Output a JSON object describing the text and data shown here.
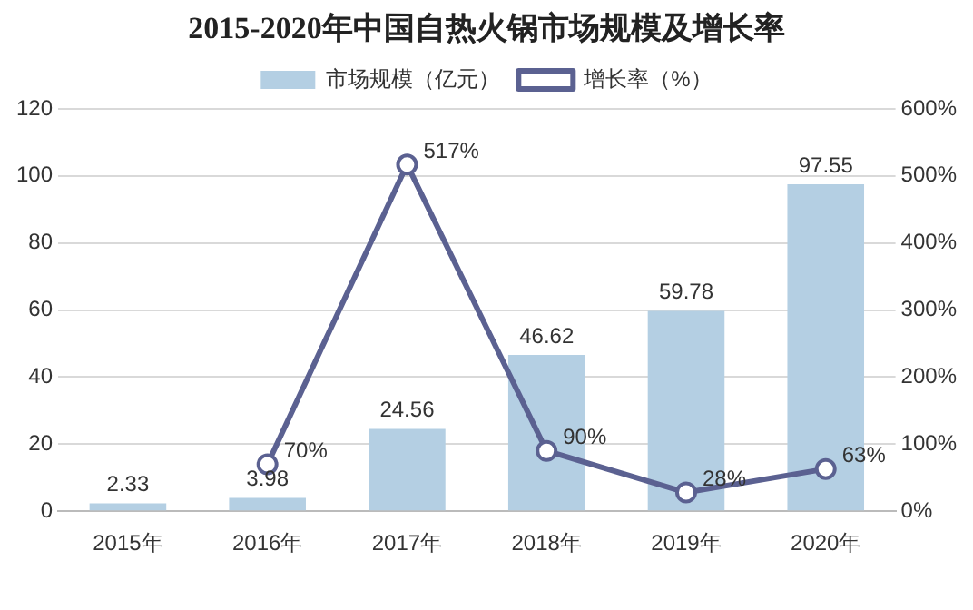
{
  "chart_data": {
    "type": "bar",
    "title": "2015-2020年中国自热火锅市场规模及增长率",
    "categories": [
      "2015年",
      "2016年",
      "2017年",
      "2018年",
      "2019年",
      "2020年"
    ],
    "series": [
      {
        "name": "市场规模（亿元）",
        "color": "#b4cfe3",
        "values": [
          2.33,
          3.98,
          24.56,
          46.62,
          59.78,
          97.55
        ],
        "value_labels": [
          "2.33",
          "3.98",
          "24.56",
          "46.62",
          "59.78",
          "97.55"
        ]
      },
      {
        "name": "增长率（%）",
        "type": "line",
        "axis": "y2",
        "color": "#5b6191",
        "values": [
          null,
          70,
          517,
          90,
          28,
          63
        ],
        "value_labels": [
          null,
          "70%",
          "517%",
          "90%",
          "28%",
          "63%"
        ]
      }
    ],
    "ylim": [
      0,
      120
    ],
    "yticks": [
      0,
      20,
      40,
      60,
      80,
      100,
      120
    ],
    "y2lim": [
      0,
      600
    ],
    "y2ticks": [
      {
        "value": 0,
        "label": "0%"
      },
      {
        "value": 100,
        "label": "100%"
      },
      {
        "value": 200,
        "label": "200%"
      },
      {
        "value": 300,
        "label": "300%"
      },
      {
        "value": 400,
        "label": "400%"
      },
      {
        "value": 500,
        "label": "500%"
      },
      {
        "value": 600,
        "label": "600%"
      }
    ],
    "grid": "y",
    "legend": "top",
    "marker": "circle",
    "line_style": "solid"
  }
}
